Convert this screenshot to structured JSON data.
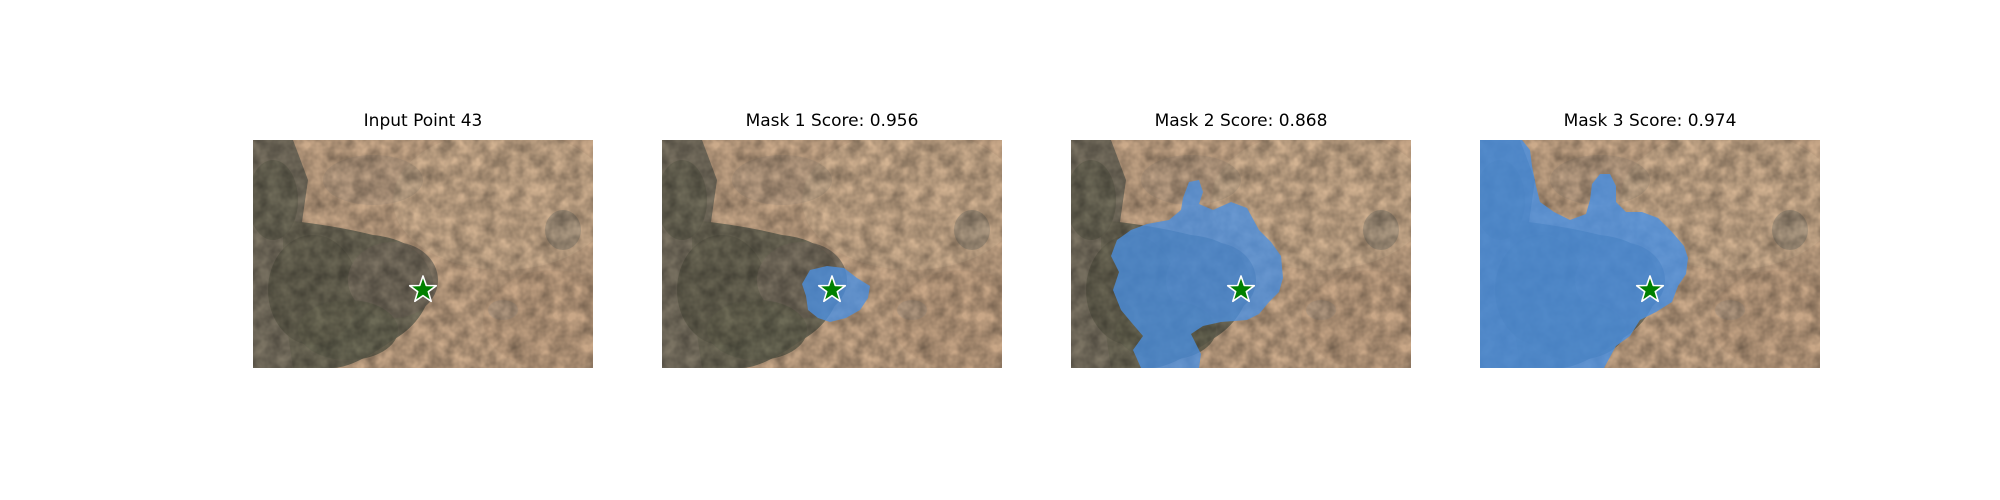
{
  "panels": [
    {
      "title": "Input Point 43"
    },
    {
      "title": "Mask 1 Score: 0.956"
    },
    {
      "title": "Mask 2 Score: 0.868"
    },
    {
      "title": "Mask 3 Score: 0.974"
    }
  ],
  "colors": {
    "mask": "#4a90e2",
    "marker_fill": "#008000",
    "marker_stroke": "#ffffff",
    "ground": "#c9a989",
    "vegetation": "#6f6a55"
  },
  "marker": {
    "icon": "star-icon"
  }
}
